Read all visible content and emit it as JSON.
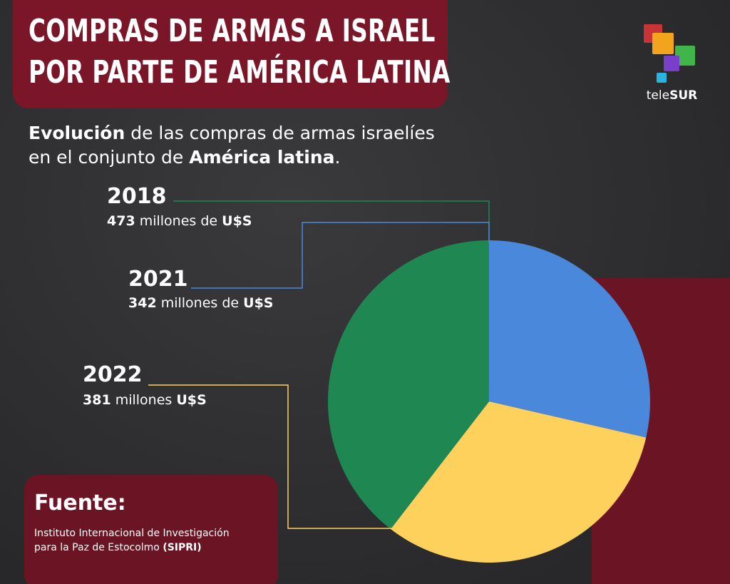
{
  "header": {
    "title_line1": "COMPRAS DE ARMAS A ISRAEL",
    "title_line2": "POR PARTE DE AMÉRICA LATINA"
  },
  "subtitle": {
    "bold1": "Evolución",
    "text1": " de las compras de armas israelíes",
    "text2": "en el conjunto de ",
    "bold2": "América latina",
    "text3": "."
  },
  "logo": {
    "part1": "tele",
    "part2": "SUR"
  },
  "labels": [
    {
      "year": "2018",
      "amount": "473",
      "text": " millones de ",
      "currency": "U$S"
    },
    {
      "year": "2021",
      "amount": "342",
      "text": " millones de ",
      "currency": "U$S"
    },
    {
      "year": "2022",
      "amount": "381",
      "text": " millones ",
      "currency": "U$S"
    }
  ],
  "source": {
    "title": "Fuente:",
    "line1": "Instituto Internacional de Investigación",
    "line2": "para la Paz de Estocolmo ",
    "bold": "(SIPRI)"
  },
  "colors": {
    "green": "#1f8751",
    "blue": "#4a88dc",
    "yellow": "#fdd15c",
    "maroon": "#7a1628"
  },
  "chart_data": {
    "type": "pie",
    "title": "Evolución de las compras de armas israelíes en el conjunto de América latina.",
    "unit": "millones de U$S",
    "slices": [
      {
        "label": "2021",
        "value": 342,
        "color": "#4a88dc"
      },
      {
        "label": "2022",
        "value": 381,
        "color": "#fdd15c"
      },
      {
        "label": "2018",
        "value": 473,
        "color": "#1f8751"
      }
    ]
  }
}
